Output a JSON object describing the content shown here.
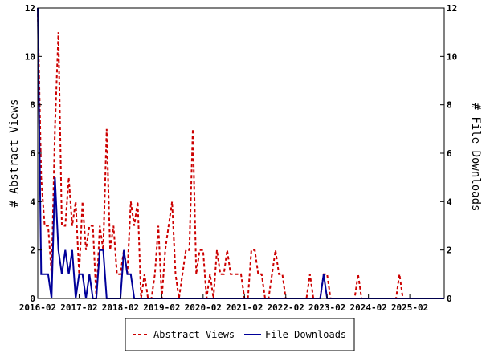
{
  "chart_data": {
    "type": "line",
    "ylabel_left": "# Abstract Views",
    "ylabel_right": "# File Downloads",
    "ylim": [
      0,
      12
    ],
    "yticks": [
      0,
      2,
      4,
      6,
      8,
      10,
      12
    ],
    "xlim": [
      "2016-02",
      "2025-12"
    ],
    "xticks": [
      "2016-02",
      "2017-02",
      "2018-02",
      "2019-02",
      "2020-02",
      "2021-02",
      "2022-02",
      "2023-02",
      "2024-02",
      "2025-02"
    ],
    "grid": false,
    "legend_position": "bottom-center",
    "series": [
      {
        "name": "Abstract Views",
        "color": "#cc0000",
        "style": "dashed",
        "points": [
          [
            "2016-02",
            12
          ],
          [
            "2016-03",
            5
          ],
          [
            "2016-04",
            3
          ],
          [
            "2016-05",
            3
          ],
          [
            "2016-06",
            1
          ],
          [
            "2016-07",
            7
          ],
          [
            "2016-08",
            11
          ],
          [
            "2016-09",
            3
          ],
          [
            "2016-10",
            3
          ],
          [
            "2016-11",
            5
          ],
          [
            "2016-12",
            3
          ],
          [
            "2017-01",
            4
          ],
          [
            "2017-02",
            1
          ],
          [
            "2017-03",
            4
          ],
          [
            "2017-04",
            2
          ],
          [
            "2017-05",
            3
          ],
          [
            "2017-06",
            3
          ],
          [
            "2017-07",
            0
          ],
          [
            "2017-08",
            3
          ],
          [
            "2017-09",
            2
          ],
          [
            "2017-10",
            7
          ],
          [
            "2017-11",
            2
          ],
          [
            "2017-12",
            3
          ],
          [
            "2018-01",
            1
          ],
          [
            "2018-02",
            1
          ],
          [
            "2018-03",
            2
          ],
          [
            "2018-04",
            1
          ],
          [
            "2018-05",
            4
          ],
          [
            "2018-06",
            3
          ],
          [
            "2018-07",
            4
          ],
          [
            "2018-08",
            0
          ],
          [
            "2018-09",
            1
          ],
          [
            "2018-10",
            0
          ],
          [
            "2018-11",
            0
          ],
          [
            "2018-12",
            1
          ],
          [
            "2019-01",
            3
          ],
          [
            "2019-02",
            0
          ],
          [
            "2019-03",
            2
          ],
          [
            "2019-04",
            3
          ],
          [
            "2019-05",
            4
          ],
          [
            "2019-06",
            1
          ],
          [
            "2019-07",
            0
          ],
          [
            "2019-08",
            1
          ],
          [
            "2019-09",
            2
          ],
          [
            "2019-10",
            2
          ],
          [
            "2019-11",
            7
          ],
          [
            "2019-12",
            1
          ],
          [
            "2020-01",
            2
          ],
          [
            "2020-02",
            2
          ],
          [
            "2020-03",
            0
          ],
          [
            "2020-04",
            1
          ],
          [
            "2020-05",
            0
          ],
          [
            "2020-06",
            2
          ],
          [
            "2020-07",
            1
          ],
          [
            "2020-08",
            1
          ],
          [
            "2020-09",
            2
          ],
          [
            "2020-10",
            1
          ],
          [
            "2020-11",
            1
          ],
          [
            "2020-12",
            1
          ],
          [
            "2021-01",
            1
          ],
          [
            "2021-02",
            0
          ],
          [
            "2021-03",
            0
          ],
          [
            "2021-04",
            2
          ],
          [
            "2021-05",
            2
          ],
          [
            "2021-06",
            1
          ],
          [
            "2021-07",
            1
          ],
          [
            "2021-08",
            0
          ],
          [
            "2021-09",
            0
          ],
          [
            "2021-10",
            1
          ],
          [
            "2021-11",
            2
          ],
          [
            "2021-12",
            1
          ],
          [
            "2022-01",
            1
          ],
          [
            "2022-02",
            0
          ],
          [
            "2022-03",
            0
          ],
          [
            "2022-04",
            0
          ],
          [
            "2022-05",
            0
          ],
          [
            "2022-06",
            0
          ],
          [
            "2022-07",
            0
          ],
          [
            "2022-08",
            0
          ],
          [
            "2022-09",
            1
          ],
          [
            "2022-10",
            0
          ],
          [
            "2022-11",
            0
          ],
          [
            "2022-12",
            0
          ],
          [
            "2023-01",
            1
          ],
          [
            "2023-02",
            1
          ],
          [
            "2023-03",
            0
          ],
          [
            "2023-04",
            0
          ],
          [
            "2023-05",
            0
          ],
          [
            "2023-06",
            0
          ],
          [
            "2023-07",
            0
          ],
          [
            "2023-08",
            0
          ],
          [
            "2023-09",
            0
          ],
          [
            "2023-10",
            0
          ],
          [
            "2023-11",
            1
          ],
          [
            "2023-12",
            0
          ],
          [
            "2024-01",
            0
          ],
          [
            "2024-02",
            0
          ],
          [
            "2024-03",
            0
          ],
          [
            "2024-04",
            0
          ],
          [
            "2024-05",
            0
          ],
          [
            "2024-06",
            0
          ],
          [
            "2024-07",
            0
          ],
          [
            "2024-08",
            0
          ],
          [
            "2024-09",
            0
          ],
          [
            "2024-10",
            0
          ],
          [
            "2024-11",
            1
          ],
          [
            "2024-12",
            0
          ],
          [
            "2025-01",
            0
          ],
          [
            "2025-02",
            0
          ],
          [
            "2025-03",
            0
          ],
          [
            "2025-04",
            0
          ],
          [
            "2025-05",
            0
          ],
          [
            "2025-06",
            0
          ],
          [
            "2025-07",
            0
          ],
          [
            "2025-08",
            0
          ],
          [
            "2025-09",
            0
          ],
          [
            "2025-10",
            0
          ],
          [
            "2025-11",
            0
          ],
          [
            "2025-12",
            0
          ]
        ]
      },
      {
        "name": "File Downloads",
        "color": "#000099",
        "style": "solid",
        "points": [
          [
            "2016-02",
            12
          ],
          [
            "2016-03",
            1
          ],
          [
            "2016-04",
            1
          ],
          [
            "2016-05",
            1
          ],
          [
            "2016-06",
            0
          ],
          [
            "2016-07",
            5
          ],
          [
            "2016-08",
            2
          ],
          [
            "2016-09",
            1
          ],
          [
            "2016-10",
            2
          ],
          [
            "2016-11",
            1
          ],
          [
            "2016-12",
            2
          ],
          [
            "2017-01",
            0
          ],
          [
            "2017-02",
            1
          ],
          [
            "2017-03",
            1
          ],
          [
            "2017-04",
            0
          ],
          [
            "2017-05",
            1
          ],
          [
            "2017-06",
            0
          ],
          [
            "2017-07",
            0
          ],
          [
            "2017-08",
            2
          ],
          [
            "2017-09",
            2
          ],
          [
            "2017-10",
            0
          ],
          [
            "2017-11",
            0
          ],
          [
            "2017-12",
            0
          ],
          [
            "2018-01",
            0
          ],
          [
            "2018-02",
            0
          ],
          [
            "2018-03",
            2
          ],
          [
            "2018-04",
            1
          ],
          [
            "2018-05",
            1
          ],
          [
            "2018-06",
            0
          ],
          [
            "2018-07",
            0
          ],
          [
            "2018-08",
            0
          ],
          [
            "2018-09",
            0
          ],
          [
            "2018-10",
            0
          ],
          [
            "2018-11",
            0
          ],
          [
            "2018-12",
            0
          ],
          [
            "2019-01",
            0
          ],
          [
            "2019-02",
            0
          ],
          [
            "2019-03",
            0
          ],
          [
            "2019-04",
            0
          ],
          [
            "2019-05",
            0
          ],
          [
            "2019-06",
            0
          ],
          [
            "2019-07",
            0
          ],
          [
            "2019-08",
            0
          ],
          [
            "2019-09",
            0
          ],
          [
            "2019-10",
            0
          ],
          [
            "2019-11",
            0
          ],
          [
            "2019-12",
            0
          ],
          [
            "2020-01",
            0
          ],
          [
            "2020-02",
            0
          ],
          [
            "2020-03",
            0
          ],
          [
            "2020-04",
            0
          ],
          [
            "2020-05",
            0
          ],
          [
            "2020-06",
            0
          ],
          [
            "2020-07",
            0
          ],
          [
            "2020-08",
            0
          ],
          [
            "2020-09",
            0
          ],
          [
            "2020-10",
            0
          ],
          [
            "2020-11",
            0
          ],
          [
            "2020-12",
            0
          ],
          [
            "2021-01",
            0
          ],
          [
            "2021-02",
            0
          ],
          [
            "2021-03",
            0
          ],
          [
            "2021-04",
            0
          ],
          [
            "2021-05",
            0
          ],
          [
            "2021-06",
            0
          ],
          [
            "2021-07",
            0
          ],
          [
            "2021-08",
            0
          ],
          [
            "2021-09",
            0
          ],
          [
            "2021-10",
            0
          ],
          [
            "2021-11",
            0
          ],
          [
            "2021-12",
            0
          ],
          [
            "2022-01",
            0
          ],
          [
            "2022-02",
            0
          ],
          [
            "2022-03",
            0
          ],
          [
            "2022-04",
            0
          ],
          [
            "2022-05",
            0
          ],
          [
            "2022-06",
            0
          ],
          [
            "2022-07",
            0
          ],
          [
            "2022-08",
            0
          ],
          [
            "2022-09",
            0
          ],
          [
            "2022-10",
            0
          ],
          [
            "2022-11",
            0
          ],
          [
            "2022-12",
            0
          ],
          [
            "2023-01",
            1
          ],
          [
            "2023-02",
            0
          ],
          [
            "2023-03",
            0
          ],
          [
            "2023-04",
            0
          ],
          [
            "2023-05",
            0
          ],
          [
            "2023-06",
            0
          ],
          [
            "2023-07",
            0
          ],
          [
            "2023-08",
            0
          ],
          [
            "2023-09",
            0
          ],
          [
            "2023-10",
            0
          ],
          [
            "2023-11",
            0
          ],
          [
            "2023-12",
            0
          ],
          [
            "2024-01",
            0
          ],
          [
            "2024-02",
            0
          ],
          [
            "2024-03",
            0
          ],
          [
            "2024-04",
            0
          ],
          [
            "2024-05",
            0
          ],
          [
            "2024-06",
            0
          ],
          [
            "2024-07",
            0
          ],
          [
            "2024-08",
            0
          ],
          [
            "2024-09",
            0
          ],
          [
            "2024-10",
            0
          ],
          [
            "2024-11",
            0
          ],
          [
            "2024-12",
            0
          ],
          [
            "2025-01",
            0
          ],
          [
            "2025-02",
            0
          ],
          [
            "2025-03",
            0
          ],
          [
            "2025-04",
            0
          ],
          [
            "2025-05",
            0
          ],
          [
            "2025-06",
            0
          ],
          [
            "2025-07",
            0
          ],
          [
            "2025-08",
            0
          ],
          [
            "2025-09",
            0
          ],
          [
            "2025-10",
            0
          ],
          [
            "2025-11",
            0
          ],
          [
            "2025-12",
            0
          ]
        ]
      }
    ]
  }
}
